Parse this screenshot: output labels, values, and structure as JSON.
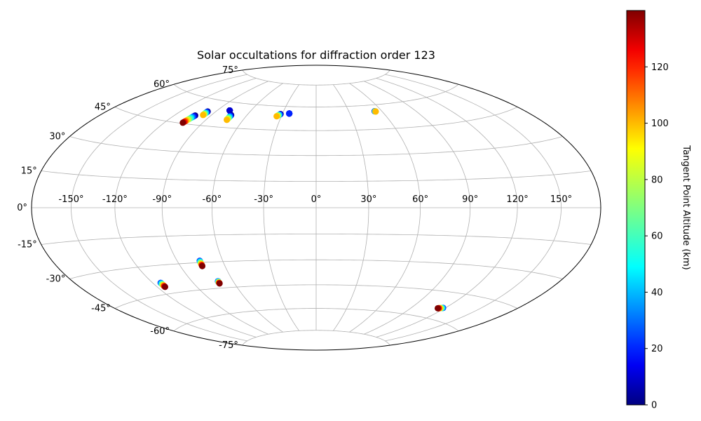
{
  "chart_data": {
    "type": "scatter",
    "projection": "hammer",
    "title": "Solar occultations for diffraction order 123",
    "grid": true,
    "lon_ticks": [
      "-150°",
      "-120°",
      "-90°",
      "-60°",
      "-30°",
      "0°",
      "30°",
      "60°",
      "90°",
      "120°",
      "150°"
    ],
    "lat_ticks": [
      "-75°",
      "-60°",
      "-45°",
      "-30°",
      "-15°",
      "0°",
      "15°",
      "30°",
      "45°",
      "60°",
      "75°"
    ],
    "colorbar": {
      "label": "Tangent Point Altitude (km)",
      "colormap": "jet",
      "range": [
        0,
        140
      ],
      "ticks": [
        "0",
        "20",
        "40",
        "60",
        "80",
        "100",
        "120"
      ]
    },
    "colormap_stops": [
      "#000080",
      "#0000ff",
      "#00ffff",
      "#ffff00",
      "#ff0000",
      "#800000"
    ],
    "clusters": [
      {
        "lon": -103,
        "lat": 50,
        "dlon": -2.6,
        "dlat": -4.6,
        "alt": [
          0,
          140
        ]
      },
      {
        "lon": -97,
        "lat": 53,
        "dlon": 0,
        "dlat": -2.2,
        "alt": [
          0,
          100
        ]
      },
      {
        "lon": -79,
        "lat": 55,
        "dlon": 0,
        "dlat": 0,
        "alt": [
          0,
          10
        ]
      },
      {
        "lon": -73.5,
        "lat": 52.5,
        "dlon": 0.3,
        "dlat": -3,
        "alt": [
          0,
          100
        ]
      },
      {
        "lon": -31.5,
        "lat": 55,
        "dlon": -2.5,
        "dlat": -1.5,
        "alt": [
          0,
          100
        ]
      },
      {
        "lon": -24,
        "lat": 55.5,
        "dlon": 0,
        "dlat": 0,
        "alt": [
          0,
          20
        ]
      },
      {
        "lon": 53.5,
        "lat": 56,
        "dlon": 0.8,
        "dlat": -0.2,
        "alt": [
          0,
          100
        ]
      },
      {
        "lon": -114,
        "lat": -39,
        "dlon": 0,
        "dlat": -2.3,
        "alt": [
          20,
          140
        ]
      },
      {
        "lon": -75,
        "lat": -29,
        "dlon": -0.2,
        "dlat": -3,
        "alt": [
          20,
          140
        ]
      },
      {
        "lon": -71,
        "lat": -41,
        "dlon": 0,
        "dlat": -1.3,
        "alt": [
          20,
          140
        ]
      },
      {
        "lon": 118,
        "lat": -53.5,
        "dlon": -4,
        "dlat": -0.7,
        "alt": [
          20,
          140
        ]
      }
    ]
  }
}
